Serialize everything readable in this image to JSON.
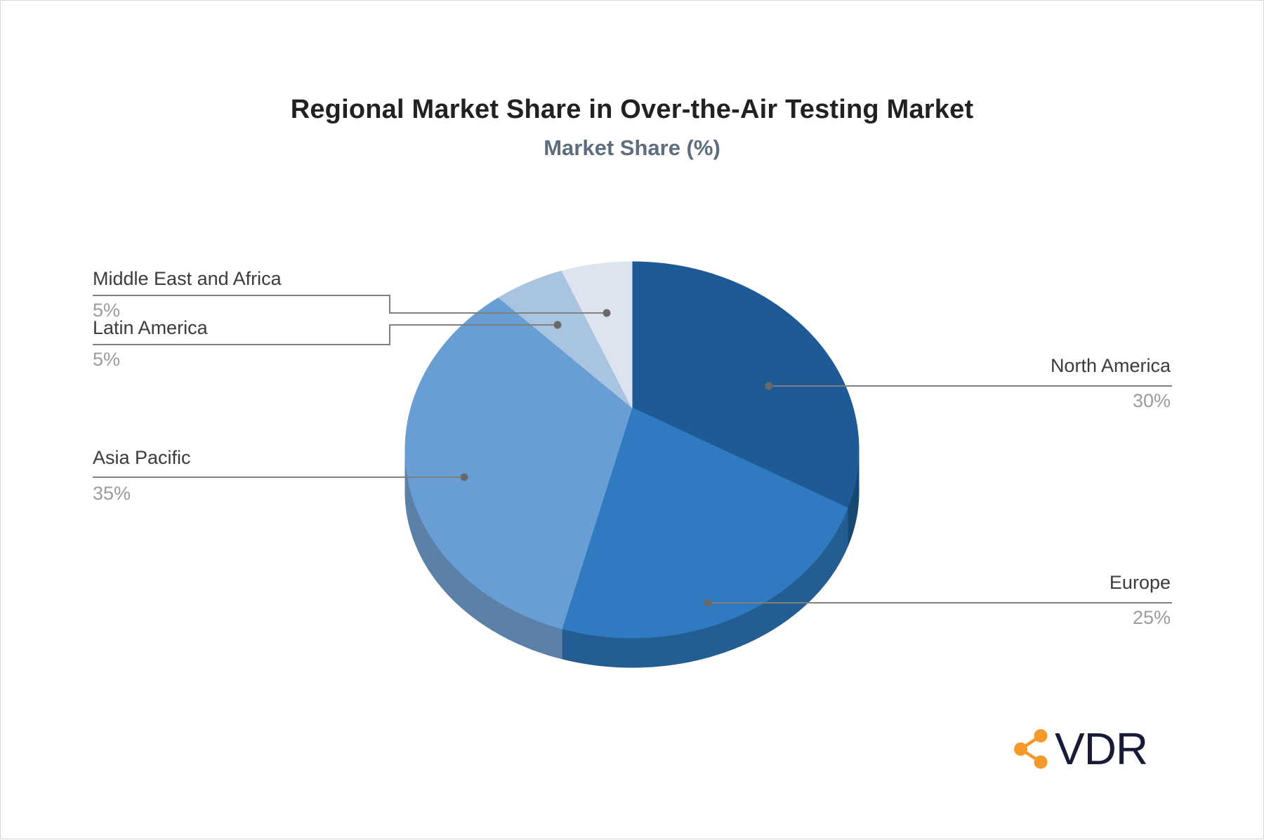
{
  "title": "Regional Market Share in Over-the-Air Testing Market",
  "subtitle": "Market Share (%)",
  "chart_data": {
    "type": "pie",
    "style": "pie-3d",
    "title": "Regional Market Share in Over-the-Air Testing Market",
    "subtitle": "Market Share (%)",
    "unit": "%",
    "start_angle_deg": 0,
    "direction": "clockwise",
    "legend_position": "callout-labels",
    "segments": [
      {
        "label": "North America",
        "value": 30,
        "value_label": "30%",
        "color": "#1E5B96",
        "side_color": "#164872"
      },
      {
        "label": "Europe",
        "value": 25,
        "value_label": "25%",
        "color": "#2F7AC1",
        "side_color": "#235D92"
      },
      {
        "label": "Asia Pacific",
        "value": 35,
        "value_label": "35%",
        "color": "#689ED3",
        "side_color": "#5B81A8"
      },
      {
        "label": "Latin America",
        "value": 5,
        "value_label": "5%",
        "color": "#A8C4E0",
        "side_color": "#7E9BBE"
      },
      {
        "label": "Middle East and Africa",
        "value": 5,
        "value_label": "5%",
        "color": "#DDE4EF",
        "side_color": "#AEBACE"
      }
    ]
  },
  "callout_style": {
    "line_color": "#7f7f7f",
    "dot_color": "#696969",
    "label_color": "#3b3b3b",
    "value_color": "#9b9b9b"
  },
  "logo": {
    "text": "VDR",
    "icon": "share-network-icon",
    "icon_color": "#F5992B",
    "text_color": "#191938"
  }
}
